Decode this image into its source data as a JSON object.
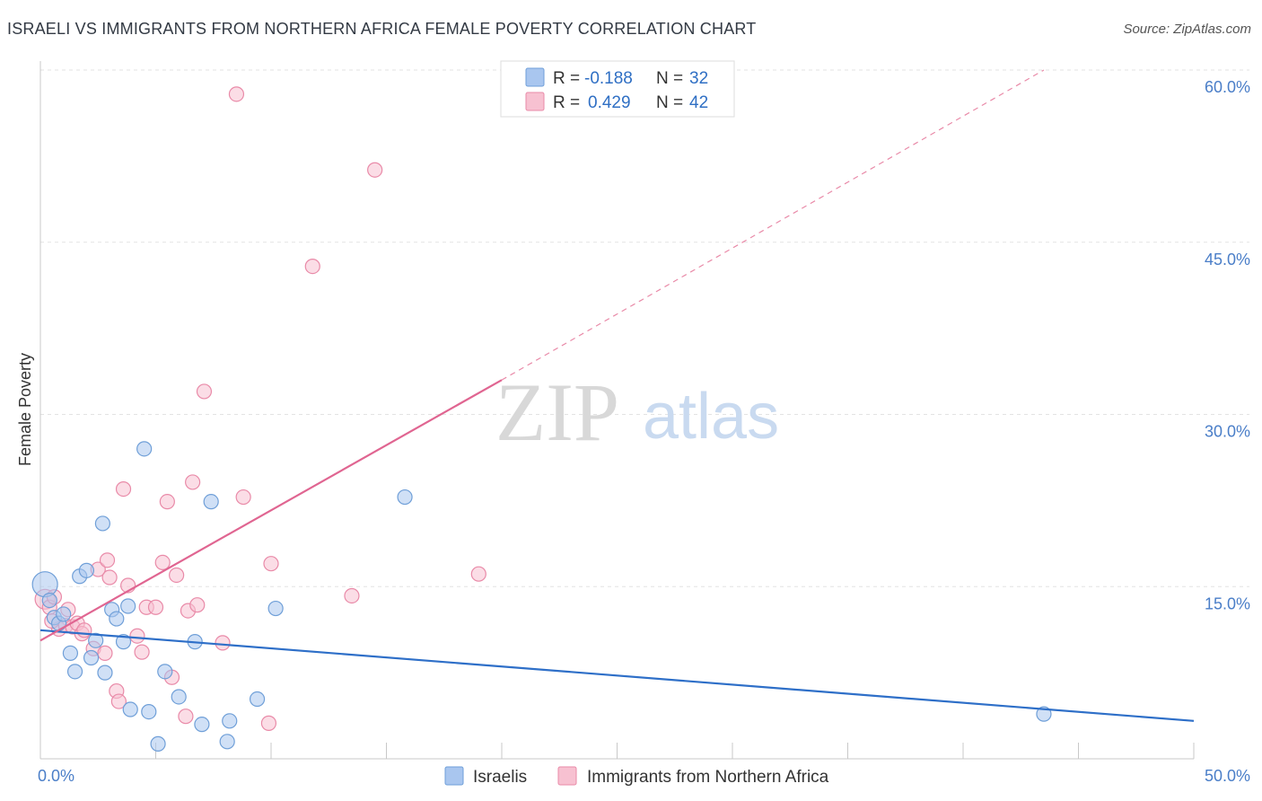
{
  "header": {
    "title": "ISRAELI VS IMMIGRANTS FROM NORTHERN AFRICA FEMALE POVERTY CORRELATION CHART",
    "source": "Source: ZipAtlas.com"
  },
  "watermark": {
    "zip": "ZIP",
    "atlas": "atlas"
  },
  "legend": {
    "rows": [
      {
        "r_label": "R = ",
        "r_value": "-0.188",
        "n_label": "N = ",
        "n_value": "32",
        "color": "#a9c6ef"
      },
      {
        "r_label": "R = ",
        "r_value": "0.429",
        "n_label": "N = ",
        "n_value": "42",
        "color": "#f5b6c9"
      }
    ]
  },
  "bottom_legend": [
    {
      "label": "Israelis",
      "color": "#a9c6ef"
    },
    {
      "label": "Immigrants from Northern Africa",
      "color": "#f5b6c9"
    }
  ],
  "colors": {
    "blue_fill": "#a9c6ef",
    "blue_stroke": "#6f9fd8",
    "blue_line": "#2e6fc8",
    "pink_fill": "#f7c1d1",
    "pink_stroke": "#e98aa8",
    "pink_line": "#e06591"
  },
  "chart_data": {
    "type": "scatter",
    "title": "ISRAELI VS IMMIGRANTS FROM NORTHERN AFRICA FEMALE POVERTY CORRELATION CHART",
    "xlabel": "",
    "ylabel": "Female Poverty",
    "xlim": [
      0,
      50
    ],
    "ylim": [
      0,
      60
    ],
    "x_tick_labels": [
      "0.0%",
      "50.0%"
    ],
    "y_tick_values": [
      15,
      30,
      45,
      60
    ],
    "y_tick_labels": [
      "15.0%",
      "30.0%",
      "45.0%",
      "60.0%"
    ],
    "grid": true,
    "legend_position": "top-center",
    "series": [
      {
        "name": "Israelis",
        "r": -0.188,
        "n": 32,
        "trend": {
          "x0": 0,
          "y0": 11.2,
          "x1": 50,
          "y1": 3.3
        },
        "points": [
          [
            0.2,
            15.2,
            14
          ],
          [
            0.4,
            13.8,
            8
          ],
          [
            0.6,
            12.3,
            8
          ],
          [
            0.8,
            11.8,
            8
          ],
          [
            1.0,
            12.6,
            8
          ],
          [
            1.3,
            9.2,
            8
          ],
          [
            1.5,
            7.6,
            8
          ],
          [
            1.7,
            15.9,
            8
          ],
          [
            2.0,
            16.4,
            8
          ],
          [
            2.2,
            8.8,
            8
          ],
          [
            2.4,
            10.3,
            8
          ],
          [
            2.7,
            20.5,
            8
          ],
          [
            2.8,
            7.5,
            8
          ],
          [
            3.1,
            13.0,
            8
          ],
          [
            3.3,
            12.2,
            8
          ],
          [
            3.6,
            10.2,
            8
          ],
          [
            3.8,
            13.3,
            8
          ],
          [
            3.9,
            4.3,
            8
          ],
          [
            4.5,
            27.0,
            8
          ],
          [
            4.7,
            4.1,
            8
          ],
          [
            5.1,
            1.3,
            8
          ],
          [
            5.4,
            7.6,
            8
          ],
          [
            6.0,
            5.4,
            8
          ],
          [
            6.7,
            10.2,
            8
          ],
          [
            7.0,
            3.0,
            8
          ],
          [
            7.4,
            22.4,
            8
          ],
          [
            8.1,
            1.5,
            8
          ],
          [
            8.2,
            3.3,
            8
          ],
          [
            9.4,
            5.2,
            8
          ],
          [
            10.2,
            13.1,
            8
          ],
          [
            15.8,
            22.8,
            8
          ],
          [
            43.5,
            3.9,
            8
          ]
        ]
      },
      {
        "name": "Immigrants from Northern Africa",
        "r": 0.429,
        "n": 42,
        "trend": {
          "x0": 0,
          "y0": 10.3,
          "x1": 20,
          "y1": 33.0
        },
        "trend_extension": {
          "x0": 20,
          "y0": 33.0,
          "x1": 43.5,
          "y1": 60.0
        },
        "points": [
          [
            0.2,
            13.9,
            11
          ],
          [
            0.4,
            13.2,
            8
          ],
          [
            0.6,
            14.1,
            8
          ],
          [
            0.8,
            11.3,
            8
          ],
          [
            1.1,
            11.6,
            8
          ],
          [
            1.2,
            13.0,
            8
          ],
          [
            1.4,
            11.5,
            8
          ],
          [
            1.6,
            11.8,
            8
          ],
          [
            1.8,
            10.9,
            8
          ],
          [
            1.9,
            11.2,
            8
          ],
          [
            2.3,
            9.6,
            8
          ],
          [
            2.5,
            16.5,
            8
          ],
          [
            2.8,
            9.2,
            8
          ],
          [
            2.9,
            17.3,
            8
          ],
          [
            3.0,
            15.8,
            8
          ],
          [
            3.3,
            5.9,
            8
          ],
          [
            3.4,
            5.0,
            8
          ],
          [
            3.6,
            23.5,
            8
          ],
          [
            3.8,
            15.1,
            8
          ],
          [
            4.2,
            10.7,
            8
          ],
          [
            4.4,
            9.3,
            8
          ],
          [
            4.6,
            13.2,
            8
          ],
          [
            5.0,
            13.2,
            8
          ],
          [
            5.3,
            17.1,
            8
          ],
          [
            5.5,
            22.4,
            8
          ],
          [
            5.7,
            7.1,
            8
          ],
          [
            5.9,
            16.0,
            8
          ],
          [
            6.3,
            3.7,
            8
          ],
          [
            6.4,
            12.9,
            8
          ],
          [
            6.6,
            24.1,
            8
          ],
          [
            6.8,
            13.4,
            8
          ],
          [
            7.1,
            32.0,
            8
          ],
          [
            7.9,
            10.1,
            8
          ],
          [
            8.5,
            57.9,
            8
          ],
          [
            8.8,
            22.8,
            8
          ],
          [
            9.9,
            3.1,
            8
          ],
          [
            10.0,
            17.0,
            8
          ],
          [
            11.8,
            42.9,
            8
          ],
          [
            13.5,
            14.2,
            8
          ],
          [
            14.5,
            51.3,
            8
          ],
          [
            19.0,
            16.1,
            8
          ],
          [
            0.5,
            12.0,
            8
          ]
        ]
      }
    ]
  }
}
